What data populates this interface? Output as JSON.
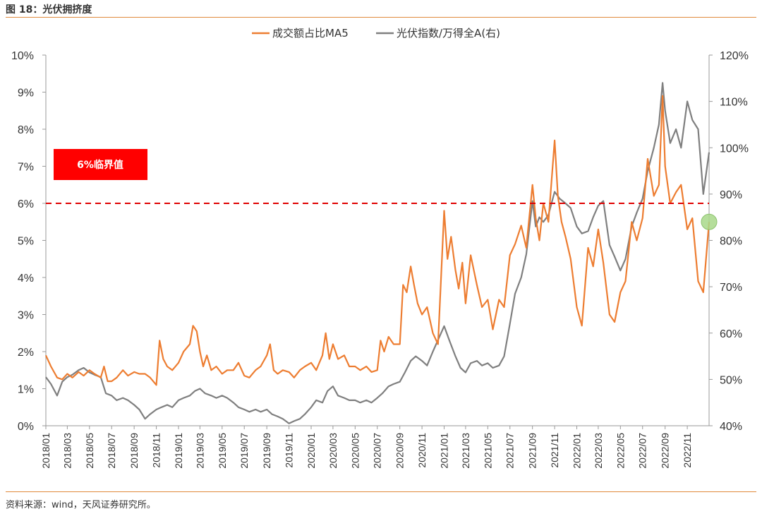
{
  "figure": {
    "title": "图 18：光伏拥挤度",
    "source": "资料来源：wind，天风证券研究所。"
  },
  "chart_data": {
    "type": "line",
    "annotation": {
      "text": "6%临界值",
      "color": "#ff0000"
    },
    "threshold": {
      "value": 6,
      "axis": "left",
      "color": "#e00000",
      "style": "dashed"
    },
    "legend_placement": "top-center",
    "grid": false,
    "y_left": {
      "min": 0,
      "max": 10,
      "step": 1,
      "tick_labels": [
        "0%",
        "1%",
        "2%",
        "3%",
        "4%",
        "5%",
        "6%",
        "7%",
        "8%",
        "9%",
        "10%"
      ]
    },
    "y_right": {
      "min": 40,
      "max": 120,
      "step": 10,
      "tick_labels": [
        "40%",
        "50%",
        "60%",
        "70%",
        "80%",
        "90%",
        "100%",
        "110%",
        "120%"
      ]
    },
    "x_ticks": [
      "2018/01",
      "2018/03",
      "2018/05",
      "2018/07",
      "2018/09",
      "2018/11",
      "2019/01",
      "2019/03",
      "2019/05",
      "2019/07",
      "2019/09",
      "2019/11",
      "2020/01",
      "2020/03",
      "2020/05",
      "2020/07",
      "2020/09",
      "2020/11",
      "2021/01",
      "2021/03",
      "2021/05",
      "2021/07",
      "2021/09",
      "2021/11",
      "2022/01",
      "2022/03",
      "2022/05",
      "2022/07",
      "2022/09",
      "2022/11"
    ],
    "x_range": [
      "2018-01-01",
      "2022-12-31"
    ],
    "marker": {
      "date": "2022-12-31",
      "axis": "left",
      "value": 5.5,
      "color": "#a8d88a"
    },
    "series": [
      {
        "name": "成交额占比MA5",
        "axis": "left",
        "color": "#ed7d31",
        "points": [
          [
            "2018-01-01",
            1.9
          ],
          [
            "2018-01-15",
            1.6
          ],
          [
            "2018-02-01",
            1.3
          ],
          [
            "2018-02-15",
            1.25
          ],
          [
            "2018-03-01",
            1.4
          ],
          [
            "2018-03-15",
            1.3
          ],
          [
            "2018-04-01",
            1.45
          ],
          [
            "2018-04-15",
            1.35
          ],
          [
            "2018-05-01",
            1.5
          ],
          [
            "2018-05-15",
            1.4
          ],
          [
            "2018-06-01",
            1.3
          ],
          [
            "2018-06-10",
            1.6
          ],
          [
            "2018-06-20",
            1.2
          ],
          [
            "2018-07-01",
            1.2
          ],
          [
            "2018-07-15",
            1.3
          ],
          [
            "2018-08-01",
            1.5
          ],
          [
            "2018-08-15",
            1.35
          ],
          [
            "2018-09-01",
            1.45
          ],
          [
            "2018-09-15",
            1.4
          ],
          [
            "2018-10-01",
            1.4
          ],
          [
            "2018-10-15",
            1.3
          ],
          [
            "2018-11-01",
            1.1
          ],
          [
            "2018-11-10",
            2.3
          ],
          [
            "2018-11-20",
            1.8
          ],
          [
            "2018-12-01",
            1.6
          ],
          [
            "2018-12-15",
            1.5
          ],
          [
            "2019-01-01",
            1.7
          ],
          [
            "2019-01-15",
            2.0
          ],
          [
            "2019-02-01",
            2.2
          ],
          [
            "2019-02-10",
            2.7
          ],
          [
            "2019-02-20",
            2.55
          ],
          [
            "2019-03-01",
            2.0
          ],
          [
            "2019-03-10",
            1.6
          ],
          [
            "2019-03-20",
            1.9
          ],
          [
            "2019-04-01",
            1.5
          ],
          [
            "2019-04-15",
            1.6
          ],
          [
            "2019-05-01",
            1.4
          ],
          [
            "2019-05-15",
            1.5
          ],
          [
            "2019-06-01",
            1.5
          ],
          [
            "2019-06-15",
            1.7
          ],
          [
            "2019-07-01",
            1.35
          ],
          [
            "2019-07-15",
            1.3
          ],
          [
            "2019-08-01",
            1.5
          ],
          [
            "2019-08-15",
            1.6
          ],
          [
            "2019-09-01",
            1.9
          ],
          [
            "2019-09-10",
            2.2
          ],
          [
            "2019-09-20",
            1.5
          ],
          [
            "2019-10-01",
            1.4
          ],
          [
            "2019-10-15",
            1.5
          ],
          [
            "2019-11-01",
            1.45
          ],
          [
            "2019-11-15",
            1.3
          ],
          [
            "2019-12-01",
            1.5
          ],
          [
            "2019-12-15",
            1.6
          ],
          [
            "2020-01-01",
            1.7
          ],
          [
            "2020-01-15",
            1.5
          ],
          [
            "2020-02-01",
            1.9
          ],
          [
            "2020-02-10",
            2.5
          ],
          [
            "2020-02-20",
            1.8
          ],
          [
            "2020-03-01",
            2.2
          ],
          [
            "2020-03-15",
            1.8
          ],
          [
            "2020-04-01",
            1.9
          ],
          [
            "2020-04-15",
            1.6
          ],
          [
            "2020-05-01",
            1.6
          ],
          [
            "2020-05-15",
            1.5
          ],
          [
            "2020-06-01",
            1.6
          ],
          [
            "2020-06-15",
            1.45
          ],
          [
            "2020-07-01",
            1.5
          ],
          [
            "2020-07-10",
            2.3
          ],
          [
            "2020-07-20",
            2.0
          ],
          [
            "2020-08-01",
            2.4
          ],
          [
            "2020-08-15",
            2.2
          ],
          [
            "2020-09-01",
            2.2
          ],
          [
            "2020-09-10",
            3.8
          ],
          [
            "2020-09-20",
            3.6
          ],
          [
            "2020-10-01",
            4.3
          ],
          [
            "2020-10-10",
            3.8
          ],
          [
            "2020-10-20",
            3.3
          ],
          [
            "2020-11-01",
            3.0
          ],
          [
            "2020-11-15",
            3.2
          ],
          [
            "2020-12-01",
            2.5
          ],
          [
            "2020-12-15",
            2.2
          ],
          [
            "2021-01-01",
            5.8
          ],
          [
            "2021-01-10",
            4.5
          ],
          [
            "2021-01-20",
            5.1
          ],
          [
            "2021-02-01",
            4.2
          ],
          [
            "2021-02-10",
            3.7
          ],
          [
            "2021-02-20",
            4.4
          ],
          [
            "2021-03-01",
            3.3
          ],
          [
            "2021-03-15",
            4.6
          ],
          [
            "2021-04-01",
            3.8
          ],
          [
            "2021-04-15",
            3.2
          ],
          [
            "2021-05-01",
            3.4
          ],
          [
            "2021-05-15",
            2.6
          ],
          [
            "2021-06-01",
            3.4
          ],
          [
            "2021-06-15",
            3.2
          ],
          [
            "2021-07-01",
            4.6
          ],
          [
            "2021-07-15",
            4.9
          ],
          [
            "2021-08-01",
            5.4
          ],
          [
            "2021-08-15",
            4.8
          ],
          [
            "2021-09-01",
            6.5
          ],
          [
            "2021-09-10",
            5.6
          ],
          [
            "2021-09-20",
            5.0
          ],
          [
            "2021-10-01",
            6.0
          ],
          [
            "2021-10-15",
            5.5
          ],
          [
            "2021-11-01",
            7.7
          ],
          [
            "2021-11-10",
            6.2
          ],
          [
            "2021-11-20",
            5.5
          ],
          [
            "2021-12-01",
            5.1
          ],
          [
            "2021-12-15",
            4.5
          ],
          [
            "2022-01-01",
            3.2
          ],
          [
            "2022-01-15",
            2.7
          ],
          [
            "2022-02-01",
            4.8
          ],
          [
            "2022-02-15",
            4.3
          ],
          [
            "2022-03-01",
            5.3
          ],
          [
            "2022-03-15",
            4.4
          ],
          [
            "2022-04-01",
            3.0
          ],
          [
            "2022-04-15",
            2.8
          ],
          [
            "2022-05-01",
            3.6
          ],
          [
            "2022-05-15",
            3.9
          ],
          [
            "2022-06-01",
            5.5
          ],
          [
            "2022-06-15",
            5.0
          ],
          [
            "2022-07-01",
            5.6
          ],
          [
            "2022-07-15",
            7.2
          ],
          [
            "2022-08-01",
            6.2
          ],
          [
            "2022-08-15",
            6.5
          ],
          [
            "2022-08-25",
            8.9
          ],
          [
            "2022-09-01",
            7.0
          ],
          [
            "2022-09-15",
            6.0
          ],
          [
            "2022-10-01",
            6.3
          ],
          [
            "2022-10-15",
            6.5
          ],
          [
            "2022-11-01",
            5.3
          ],
          [
            "2022-11-15",
            5.6
          ],
          [
            "2022-12-01",
            3.9
          ],
          [
            "2022-12-15",
            3.6
          ],
          [
            "2022-12-31",
            5.5
          ]
        ]
      },
      {
        "name": "光伏指数/万得全A(右)",
        "axis": "right",
        "color": "#7f7f7f",
        "points": [
          [
            "2018-01-01",
            50.5
          ],
          [
            "2018-01-15",
            49.0
          ],
          [
            "2018-02-01",
            46.5
          ],
          [
            "2018-02-15",
            49.5
          ],
          [
            "2018-03-01",
            50.5
          ],
          [
            "2018-03-15",
            51.0
          ],
          [
            "2018-04-01",
            52.0
          ],
          [
            "2018-04-15",
            52.5
          ],
          [
            "2018-05-01",
            51.5
          ],
          [
            "2018-05-15",
            51.0
          ],
          [
            "2018-06-01",
            50.5
          ],
          [
            "2018-06-15",
            47.0
          ],
          [
            "2018-07-01",
            46.5
          ],
          [
            "2018-07-15",
            45.5
          ],
          [
            "2018-08-01",
            46.0
          ],
          [
            "2018-08-15",
            45.5
          ],
          [
            "2018-09-01",
            44.5
          ],
          [
            "2018-09-15",
            43.5
          ],
          [
            "2018-10-01",
            41.5
          ],
          [
            "2018-10-15",
            42.5
          ],
          [
            "2018-11-01",
            43.5
          ],
          [
            "2018-11-15",
            44.0
          ],
          [
            "2018-12-01",
            44.5
          ],
          [
            "2018-12-15",
            44.0
          ],
          [
            "2019-01-01",
            45.5
          ],
          [
            "2019-01-15",
            46.0
          ],
          [
            "2019-02-01",
            46.5
          ],
          [
            "2019-02-15",
            47.5
          ],
          [
            "2019-03-01",
            48.0
          ],
          [
            "2019-03-15",
            47.0
          ],
          [
            "2019-04-01",
            46.5
          ],
          [
            "2019-04-15",
            46.0
          ],
          [
            "2019-05-01",
            46.5
          ],
          [
            "2019-05-15",
            46.0
          ],
          [
            "2019-06-01",
            45.0
          ],
          [
            "2019-06-15",
            44.0
          ],
          [
            "2019-07-01",
            43.5
          ],
          [
            "2019-07-15",
            43.0
          ],
          [
            "2019-08-01",
            43.5
          ],
          [
            "2019-08-15",
            43.0
          ],
          [
            "2019-09-01",
            43.5
          ],
          [
            "2019-09-15",
            42.5
          ],
          [
            "2019-10-01",
            42.0
          ],
          [
            "2019-10-15",
            41.5
          ],
          [
            "2019-11-01",
            40.5
          ],
          [
            "2019-11-15",
            41.0
          ],
          [
            "2019-12-01",
            41.5
          ],
          [
            "2019-12-15",
            42.5
          ],
          [
            "2020-01-01",
            44.0
          ],
          [
            "2020-01-15",
            45.5
          ],
          [
            "2020-02-01",
            45.0
          ],
          [
            "2020-02-15",
            47.5
          ],
          [
            "2020-03-01",
            48.5
          ],
          [
            "2020-03-15",
            46.5
          ],
          [
            "2020-04-01",
            46.0
          ],
          [
            "2020-04-15",
            45.5
          ],
          [
            "2020-05-01",
            45.5
          ],
          [
            "2020-05-15",
            45.0
          ],
          [
            "2020-06-01",
            45.5
          ],
          [
            "2020-06-15",
            45.0
          ],
          [
            "2020-07-01",
            46.0
          ],
          [
            "2020-07-15",
            47.0
          ],
          [
            "2020-08-01",
            48.5
          ],
          [
            "2020-08-15",
            49.0
          ],
          [
            "2020-09-01",
            49.5
          ],
          [
            "2020-09-15",
            51.5
          ],
          [
            "2020-10-01",
            54.0
          ],
          [
            "2020-10-15",
            55.0
          ],
          [
            "2020-11-01",
            54.0
          ],
          [
            "2020-11-15",
            53.0
          ],
          [
            "2020-12-01",
            56.0
          ],
          [
            "2020-12-15",
            58.5
          ],
          [
            "2021-01-01",
            61.5
          ],
          [
            "2021-01-15",
            58.5
          ],
          [
            "2021-02-01",
            55.0
          ],
          [
            "2021-02-15",
            52.5
          ],
          [
            "2021-03-01",
            51.5
          ],
          [
            "2021-03-15",
            53.5
          ],
          [
            "2021-04-01",
            54.0
          ],
          [
            "2021-04-15",
            53.0
          ],
          [
            "2021-05-01",
            53.5
          ],
          [
            "2021-05-15",
            52.5
          ],
          [
            "2021-06-01",
            53.0
          ],
          [
            "2021-06-15",
            55.0
          ],
          [
            "2021-07-01",
            62.0
          ],
          [
            "2021-07-15",
            68.5
          ],
          [
            "2021-08-01",
            72.0
          ],
          [
            "2021-08-15",
            77.0
          ],
          [
            "2021-09-01",
            88.5
          ],
          [
            "2021-09-10",
            83.0
          ],
          [
            "2021-09-20",
            85.0
          ],
          [
            "2021-10-01",
            84.0
          ],
          [
            "2021-10-15",
            85.5
          ],
          [
            "2021-11-01",
            90.5
          ],
          [
            "2021-11-15",
            89.0
          ],
          [
            "2021-12-01",
            88.0
          ],
          [
            "2021-12-15",
            87.0
          ],
          [
            "2022-01-01",
            83.0
          ],
          [
            "2022-01-15",
            81.5
          ],
          [
            "2022-02-01",
            82.0
          ],
          [
            "2022-02-15",
            85.0
          ],
          [
            "2022-03-01",
            87.5
          ],
          [
            "2022-03-15",
            88.5
          ],
          [
            "2022-04-01",
            79.0
          ],
          [
            "2022-04-15",
            76.5
          ],
          [
            "2022-05-01",
            73.5
          ],
          [
            "2022-05-15",
            76.0
          ],
          [
            "2022-06-01",
            83.0
          ],
          [
            "2022-06-15",
            86.0
          ],
          [
            "2022-07-01",
            89.0
          ],
          [
            "2022-07-15",
            95.0
          ],
          [
            "2022-08-01",
            100.0
          ],
          [
            "2022-08-15",
            105.0
          ],
          [
            "2022-08-25",
            114.0
          ],
          [
            "2022-09-01",
            108.0
          ],
          [
            "2022-09-15",
            101.0
          ],
          [
            "2022-10-01",
            104.0
          ],
          [
            "2022-10-15",
            100.0
          ],
          [
            "2022-11-01",
            110.0
          ],
          [
            "2022-11-15",
            106.0
          ],
          [
            "2022-12-01",
            104.0
          ],
          [
            "2022-12-15",
            90.0
          ],
          [
            "2022-12-31",
            99.0
          ]
        ]
      }
    ]
  }
}
